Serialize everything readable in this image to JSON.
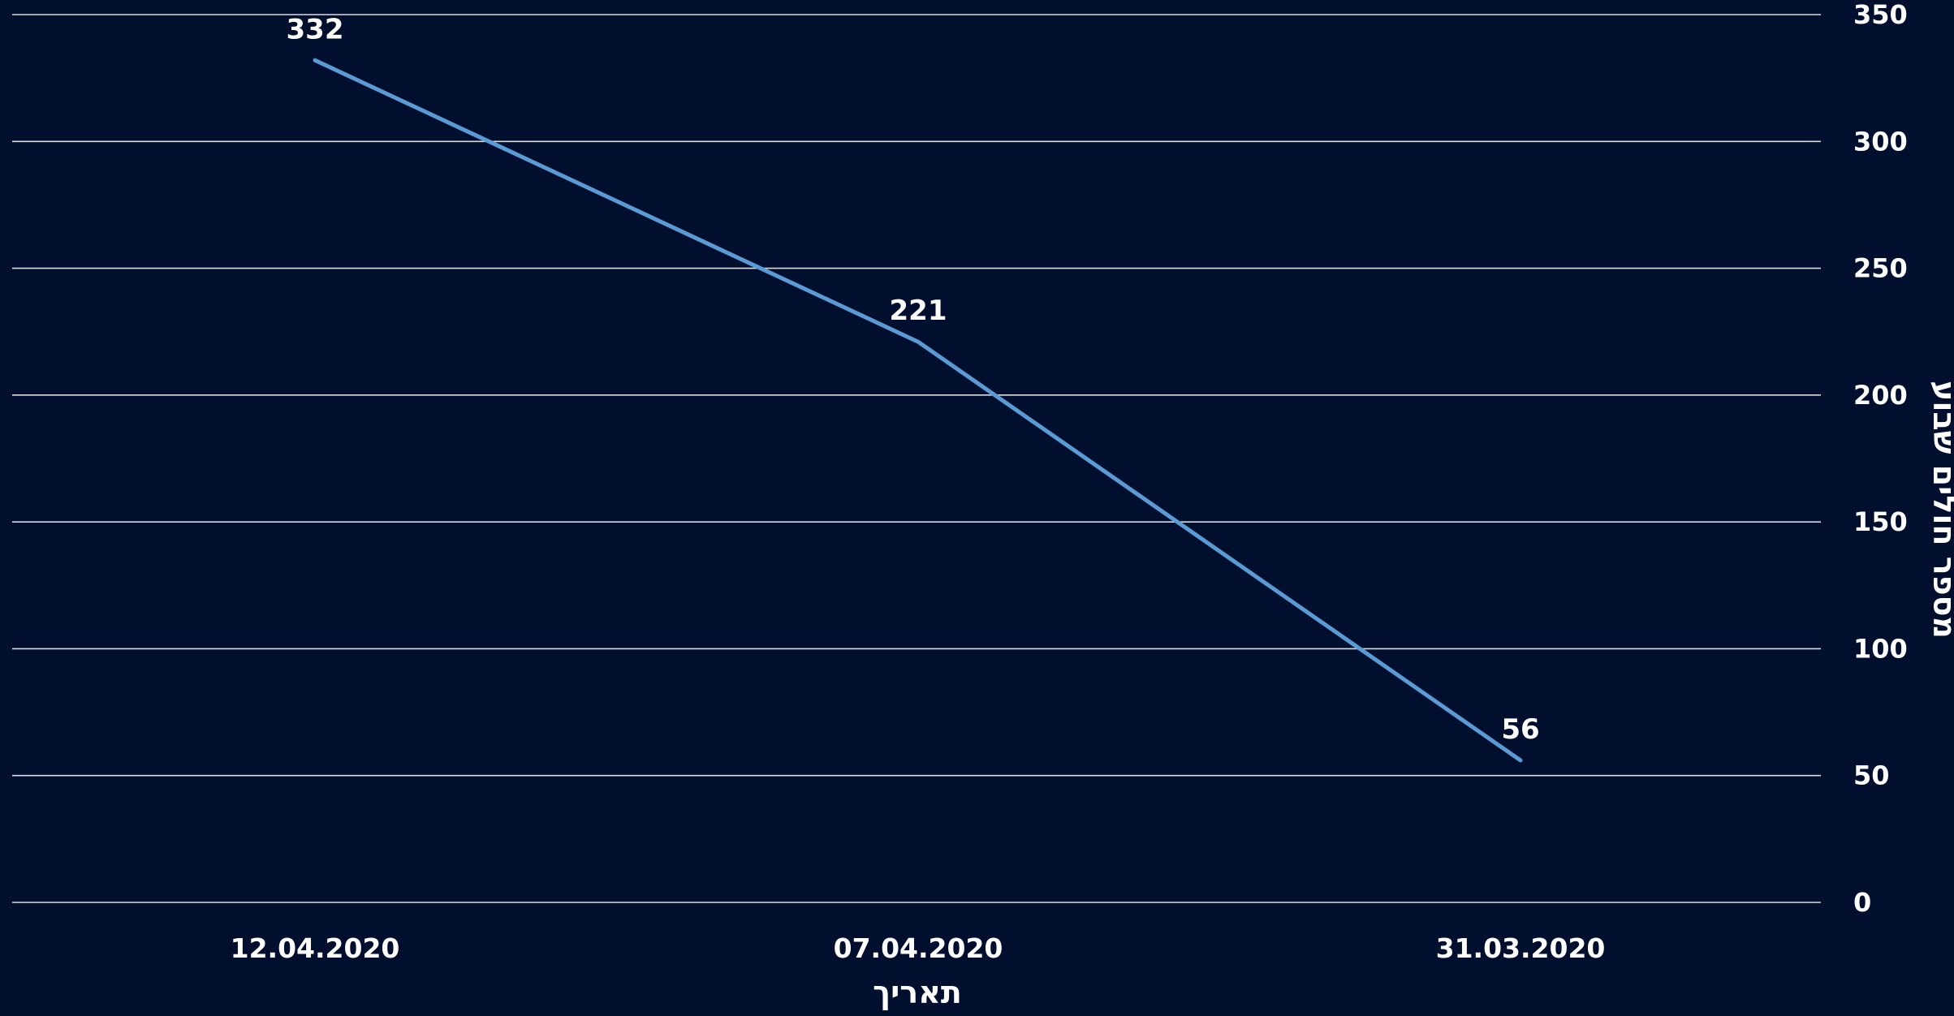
{
  "colors": {
    "background": "#000f2d",
    "line": "#5b9bd5",
    "grid": "#ffffff",
    "text": "#ffffff"
  },
  "chart_data": {
    "type": "line",
    "title": "",
    "xlabel": "תאריך",
    "ylabel": "מספר חולים שבוע",
    "x_reversed": true,
    "y_axis_position": "right",
    "categories": [
      "12.04.2020",
      "07.04.2020",
      "31.03.2020"
    ],
    "series": [
      {
        "values": [
          332,
          221,
          56
        ]
      }
    ],
    "data_labels": [
      "332",
      "221",
      "56"
    ],
    "ylim": [
      0,
      350
    ],
    "yticks": [
      0,
      50,
      100,
      150,
      200,
      250,
      300,
      350
    ],
    "grid": true,
    "legend": "none"
  }
}
